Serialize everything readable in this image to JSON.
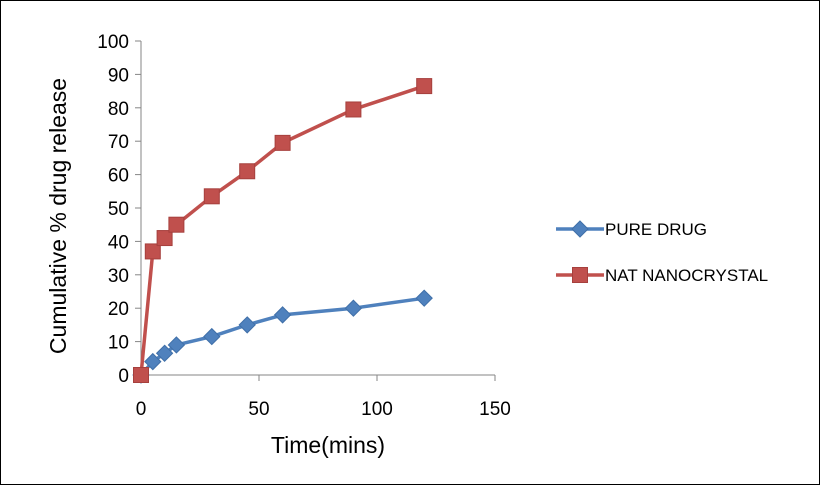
{
  "chart_data": {
    "type": "line",
    "title": "",
    "xlabel": "Time(mins)",
    "ylabel": "Cumulative % drug release",
    "xlim": [
      0,
      150
    ],
    "ylim": [
      0,
      100
    ],
    "x_ticks": [
      "0",
      "50",
      "100",
      "150"
    ],
    "y_ticks": [
      "0",
      "10",
      "20",
      "30",
      "40",
      "50",
      "60",
      "70",
      "80",
      "90",
      "100"
    ],
    "grid": false,
    "legend_position": "right",
    "series": [
      {
        "name": "PURE DRUG",
        "color": "#4f81bd",
        "marker": "diamond",
        "x": [
          0,
          5,
          10,
          15,
          30,
          45,
          60,
          90,
          120
        ],
        "y": [
          0,
          4,
          6.5,
          9,
          11.5,
          15,
          18,
          20,
          23
        ]
      },
      {
        "name": "NAT NANOCRYSTAL",
        "color": "#c0504d",
        "marker": "square",
        "x": [
          0,
          5,
          10,
          15,
          30,
          45,
          60,
          90,
          120
        ],
        "y": [
          0,
          37,
          41,
          45,
          53.5,
          61,
          69.5,
          79.5,
          86.5
        ]
      }
    ]
  }
}
